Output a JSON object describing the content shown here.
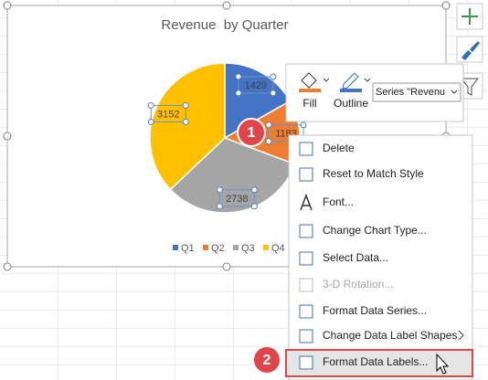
{
  "chart_data": {
    "type": "pie",
    "title": "Revenue  by Quarter",
    "categories": [
      "Q1",
      "Q2",
      "Q3",
      "Q4"
    ],
    "values": [
      1429,
      1183,
      2738,
      3152
    ],
    "colors": [
      "#4472c4",
      "#ed7d31",
      "#a5a5a5",
      "#ffc000"
    ]
  },
  "toolbar": {
    "fill": "Fill",
    "outline": "Outline",
    "series_dropdown": "Series \"Revenu"
  },
  "context_menu": {
    "items": [
      "Delete",
      "Reset to Match Style",
      "Font...",
      "Change Chart Type...",
      "Select Data...",
      "3-D Rotation...",
      "Format Data Series...",
      "Change Data Label Shapes",
      "Format Data Labels..."
    ]
  },
  "callouts": [
    "1",
    "2"
  ]
}
